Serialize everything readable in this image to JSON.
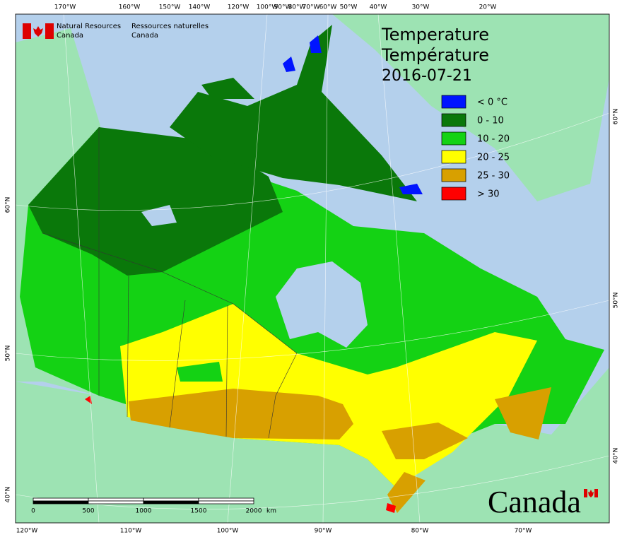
{
  "header": {
    "department_en": [
      "Natural Resources",
      "Canada"
    ],
    "department_fr": [
      "Ressources naturelles",
      "Canada"
    ]
  },
  "title": [
    "Temperature",
    "Température"
  ],
  "date": "2016-07-21",
  "legend": [
    {
      "label": "< 0 °C",
      "color": "#0014ff"
    },
    {
      "label": "0 - 10",
      "color": "#0a780a"
    },
    {
      "label": "10 - 20",
      "color": "#14d214"
    },
    {
      "label": "20 - 25",
      "color": "#ffff00"
    },
    {
      "label": "25 - 30",
      "color": "#d8a000"
    },
    {
      "label": "> 30",
      "color": "#ff0000"
    }
  ],
  "top_labels": [
    "170°W",
    "160°W",
    "150°W",
    "140°W",
    "120°W",
    "100°W",
    "90°W",
    "80°W",
    "70°W",
    "60°W",
    "50°W",
    "40°W",
    "30°W",
    "20°W"
  ],
  "bottom_labels": [
    "120°W",
    "110°W",
    "100°W",
    "90°W",
    "80°W",
    "70°W"
  ],
  "left_labels": [
    "60°N",
    "50°N",
    "40°N"
  ],
  "right_labels": [
    "60°N",
    "50°N",
    "40°N"
  ],
  "scale": {
    "labels": [
      "0",
      "500",
      "1000",
      "1500",
      "2000"
    ],
    "unit": "km"
  },
  "wordmark": "Canada"
}
